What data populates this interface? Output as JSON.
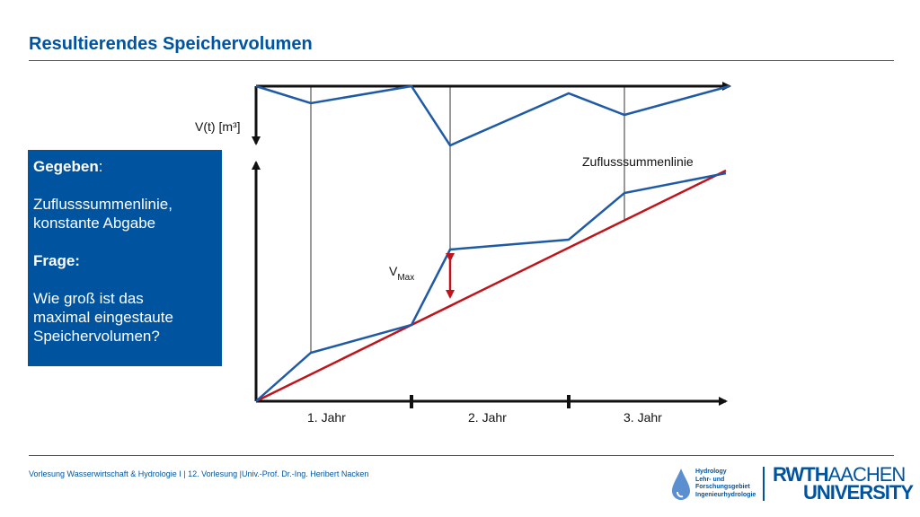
{
  "title": "Resultierendes Speichervolumen",
  "infobox": {
    "given_label": "Gegeben",
    "given_colon": ":",
    "given_text_1": "Zuflusssummenlinie,",
    "given_text_2": "konstante Abgabe",
    "question_label": "Frage:",
    "question_text_1": "Wie groß ist das",
    "question_text_2": "maximal eingestaute",
    "question_text_3": "Speichervolumen?"
  },
  "diagram": {
    "top_axis_label": "V(t) [m³]",
    "curve_label": "Zuflusssummenlinie",
    "vmax_main": "V",
    "vmax_sub": "Max",
    "x_labels": [
      "1. Jahr",
      "2. Jahr",
      "3. Jahr"
    ],
    "colors": {
      "curve": "#1f5aa6",
      "line": "#c0141c",
      "axis": "#111111"
    }
  },
  "footer": "Vorlesung Wasserwirtschaft & Hydrologie I | 12. Vorlesung |Univ.-Prof. Dr.-Ing. Heribert Nacken",
  "logos": {
    "hydro_lines": [
      "Hydrology",
      "Lehr- und",
      "Forschungsgebiet",
      "Ingenieurhydrologie"
    ],
    "rwth_1": "RWTH",
    "rwth_2": "AACHEN",
    "rwth_3": "UNIVERSITY"
  }
}
